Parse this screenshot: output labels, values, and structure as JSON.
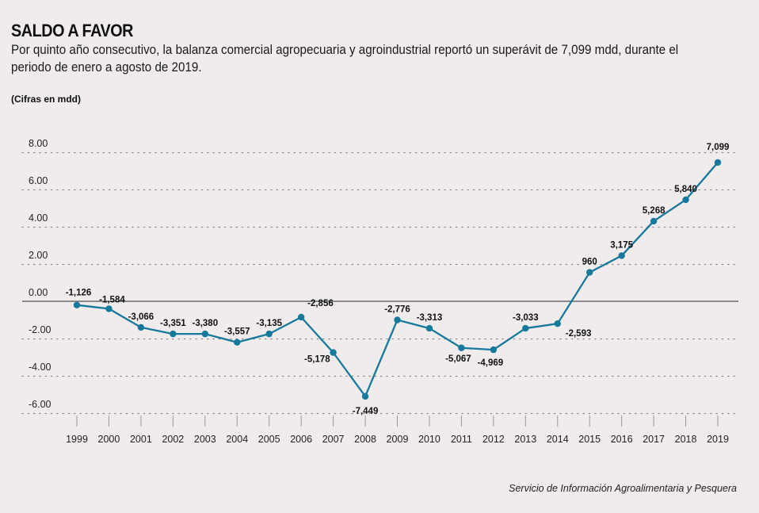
{
  "header": {
    "title": "SALDO A FAVOR",
    "subtitle": "Por quinto año consecutivo, la balanza comercial agropecuaria y agroindustrial reportó un superávit de 7,099 mdd, durante el periodo de enero a agosto de 2019.",
    "unit_note": "(Cifras en mdd)"
  },
  "footer": {
    "source": "Servicio de Información Agroalimentaria y Pesquera"
  },
  "colors": {
    "line": "#17799c",
    "background": "#efeceb",
    "grid": "#8a8a8a",
    "zero_line": "#8a8a8a"
  },
  "chart_data": {
    "type": "line",
    "title": "SALDO A FAVOR",
    "xlabel": "",
    "ylabel": "Cifras en mdd",
    "x": [
      "1999",
      "2000",
      "2001",
      "2002",
      "2003",
      "2004",
      "2005",
      "2006",
      "2007",
      "2008",
      "2009",
      "2010",
      "2011",
      "2012",
      "2013",
      "2014",
      "2015",
      "2016",
      "2017",
      "2018",
      "2019"
    ],
    "y_plotted": [
      -0.2,
      -0.4,
      -1.4,
      -1.75,
      -1.75,
      -2.2,
      -1.75,
      -0.85,
      -2.75,
      -5.1,
      -1.0,
      -1.45,
      -2.5,
      -2.6,
      -1.45,
      -1.2,
      1.55,
      2.45,
      4.3,
      5.45,
      7.45
    ],
    "data_labels": [
      "-1,126",
      "-1,584",
      "-3,066",
      "-3,351",
      "-3,380",
      "-3,557",
      "-3,135",
      "-2,856",
      "-5,178",
      "-7,449",
      "-2,776",
      "-3,313",
      "-5,067",
      "-4,969",
      "-3,033",
      "-2,593",
      "960",
      "3,175",
      "5,268",
      "5,840",
      "7,099"
    ],
    "label_position": [
      "above",
      "above",
      "above",
      "above",
      "above",
      "above",
      "above",
      "above-right",
      "below-left",
      "below",
      "above",
      "above",
      "below",
      "below",
      "above",
      "below-right",
      "above",
      "above",
      "above",
      "above",
      "above"
    ],
    "yticks": [
      "8.00",
      "6.00",
      "4.00",
      "2.00",
      "0.00",
      "-2.00",
      "-4.00",
      "-6.00"
    ],
    "ytick_values": [
      8,
      6,
      4,
      2,
      0,
      -2,
      -4,
      -6
    ],
    "ylim": [
      -6,
      8
    ],
    "grid": true,
    "legend": "none"
  }
}
